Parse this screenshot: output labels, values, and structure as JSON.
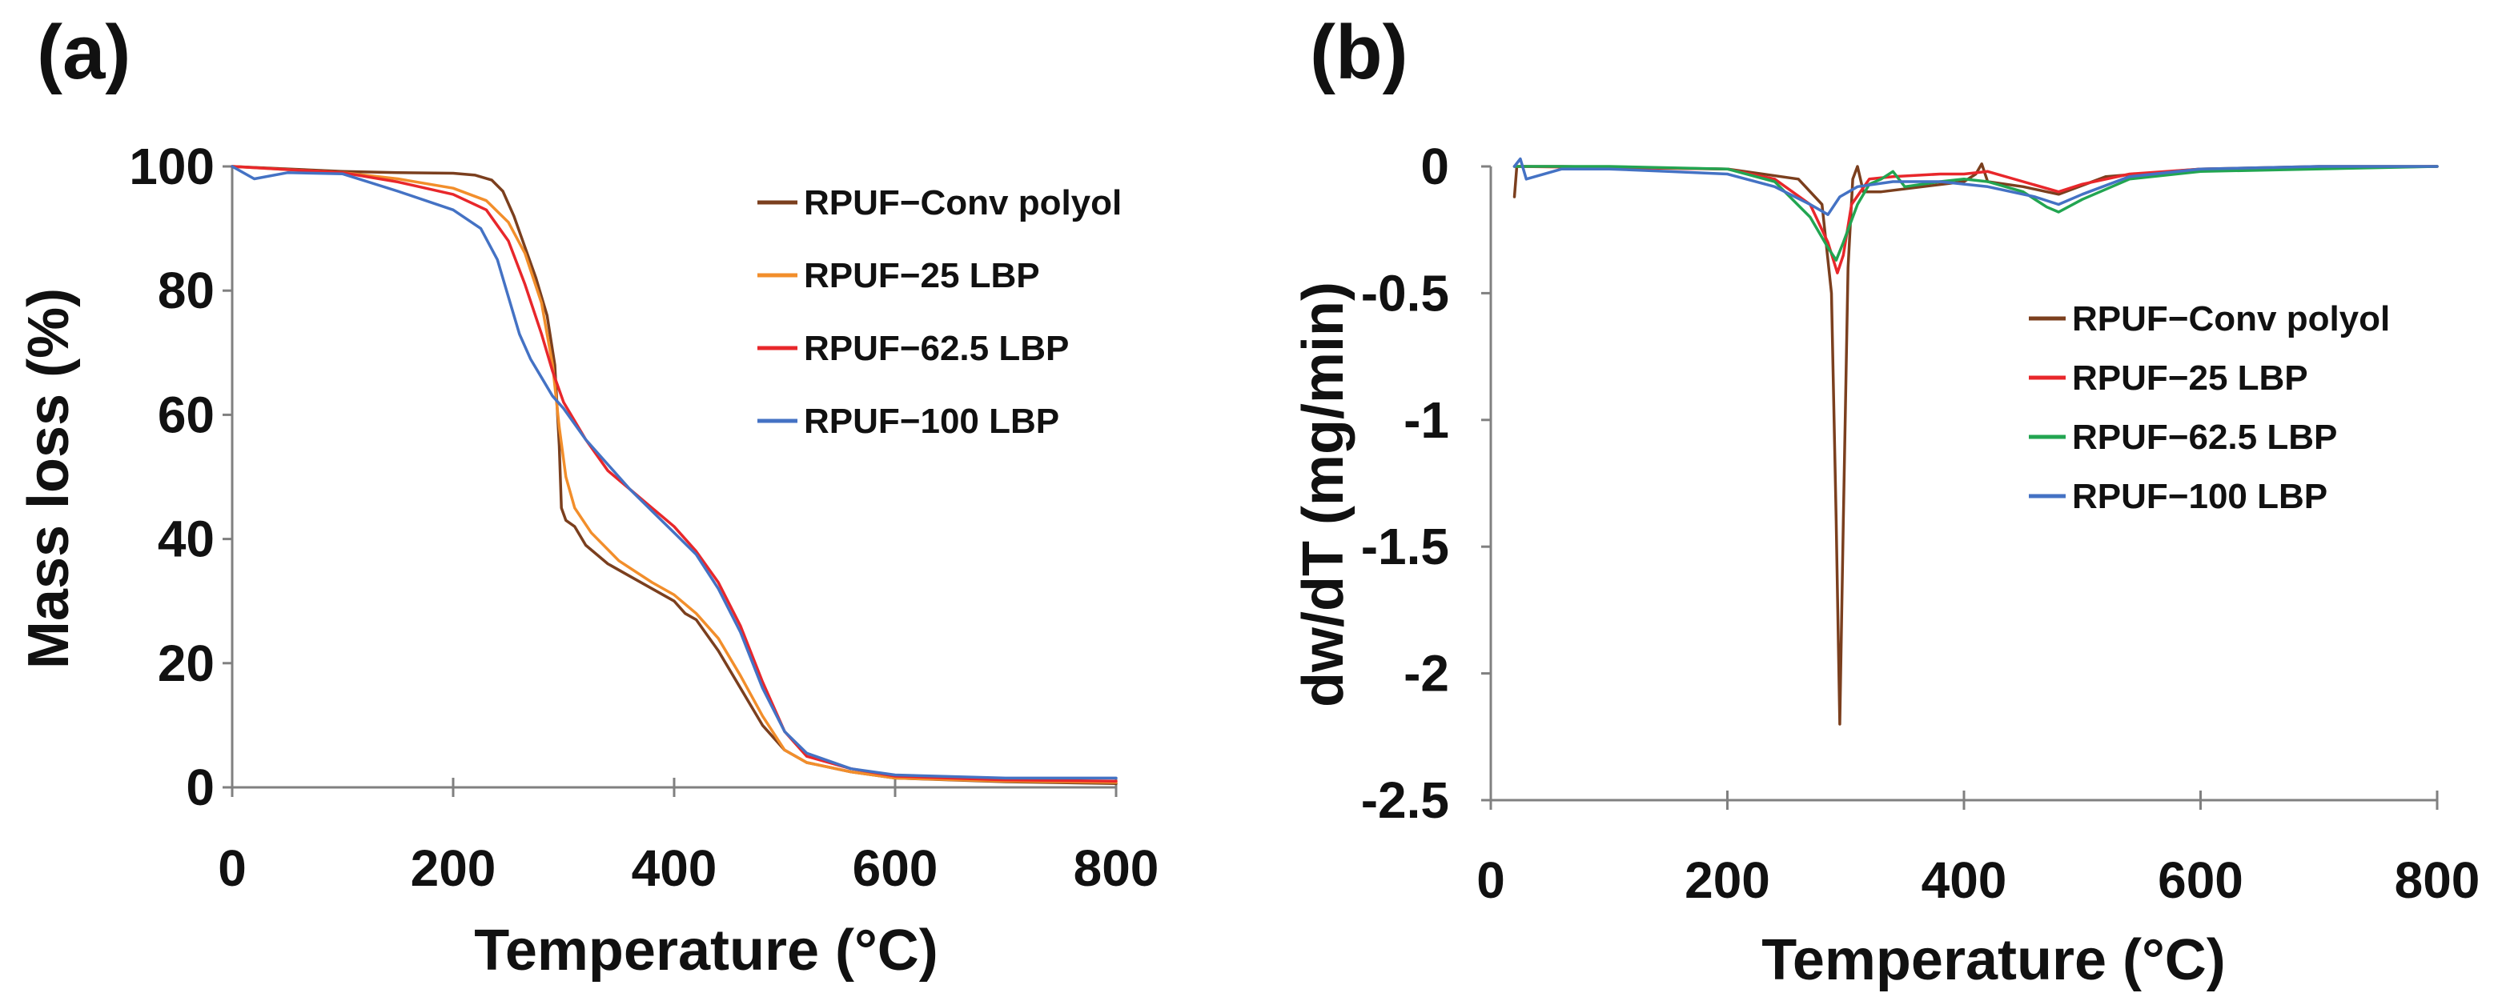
{
  "chart_data": [
    {
      "panel_label": "(a)",
      "type": "line",
      "xlabel": "Temperature (°C)",
      "ylabel": "Mass loss  (%)",
      "xlim": [
        0,
        800
      ],
      "ylim": [
        0,
        100
      ],
      "xticks": [
        0,
        200,
        400,
        600,
        800
      ],
      "yticks": [
        0,
        20,
        40,
        60,
        80,
        100
      ],
      "legend_position": "top-right",
      "series": [
        {
          "name": "RPUF−Conv polyol",
          "color": "#7B3F1E",
          "points": [
            [
              0,
              100
            ],
            [
              50,
              99.6
            ],
            [
              100,
              99.2
            ],
            [
              150,
              99
            ],
            [
              200,
              98.9
            ],
            [
              220,
              98.6
            ],
            [
              235,
              97.8
            ],
            [
              245,
              96
            ],
            [
              255,
              92
            ],
            [
              265,
              87
            ],
            [
              275,
              82
            ],
            [
              285,
              76
            ],
            [
              292,
              68
            ],
            [
              296,
              55
            ],
            [
              298,
              45
            ],
            [
              302,
              43
            ],
            [
              310,
              42
            ],
            [
              320,
              39
            ],
            [
              340,
              36
            ],
            [
              360,
              34
            ],
            [
              380,
              32
            ],
            [
              400,
              30
            ],
            [
              410,
              28
            ],
            [
              420,
              27
            ],
            [
              440,
              22
            ],
            [
              460,
              16
            ],
            [
              480,
              10
            ],
            [
              500,
              6
            ],
            [
              520,
              4
            ],
            [
              560,
              2.5
            ],
            [
              600,
              1.5
            ],
            [
              700,
              0.9
            ],
            [
              800,
              0.6
            ]
          ]
        },
        {
          "name": "RPUF−25 LBP",
          "color": "#F28E2B",
          "points": [
            [
              0,
              100
            ],
            [
              100,
              99
            ],
            [
              150,
              98
            ],
            [
              200,
              96.5
            ],
            [
              230,
              94.5
            ],
            [
              250,
              91
            ],
            [
              265,
              86
            ],
            [
              280,
              78
            ],
            [
              290,
              68
            ],
            [
              296,
              58
            ],
            [
              302,
              50
            ],
            [
              310,
              45
            ],
            [
              325,
              41
            ],
            [
              350,
              36.5
            ],
            [
              380,
              33
            ],
            [
              400,
              31
            ],
            [
              420,
              28
            ],
            [
              440,
              24
            ],
            [
              460,
              18
            ],
            [
              480,
              11.5
            ],
            [
              500,
              6
            ],
            [
              520,
              4
            ],
            [
              560,
              2.5
            ],
            [
              600,
              1.5
            ],
            [
              700,
              1
            ],
            [
              800,
              0.8
            ]
          ]
        },
        {
          "name": "RPUF−62.5 LBP",
          "color": "#E8272B",
          "points": [
            [
              0,
              100
            ],
            [
              100,
              99
            ],
            [
              150,
              97.5
            ],
            [
              200,
              95.5
            ],
            [
              230,
              93
            ],
            [
              250,
              88
            ],
            [
              265,
              81
            ],
            [
              280,
              73
            ],
            [
              290,
              67
            ],
            [
              300,
              62
            ],
            [
              320,
              56
            ],
            [
              340,
              51
            ],
            [
              360,
              48
            ],
            [
              380,
              45
            ],
            [
              400,
              42
            ],
            [
              420,
              38
            ],
            [
              440,
              33
            ],
            [
              460,
              26
            ],
            [
              480,
              17
            ],
            [
              500,
              9
            ],
            [
              520,
              5
            ],
            [
              560,
              3
            ],
            [
              600,
              1.8
            ],
            [
              700,
              1.2
            ],
            [
              800,
              1
            ]
          ]
        },
        {
          "name": "RPUF−100 LBP",
          "color": "#4472C4",
          "points": [
            [
              0,
              100
            ],
            [
              20,
              98
            ],
            [
              50,
              99
            ],
            [
              100,
              98.8
            ],
            [
              150,
              96
            ],
            [
              200,
              93
            ],
            [
              225,
              90
            ],
            [
              240,
              85
            ],
            [
              250,
              79
            ],
            [
              260,
              73
            ],
            [
              270,
              69
            ],
            [
              280,
              66
            ],
            [
              290,
              63
            ],
            [
              300,
              61
            ],
            [
              320,
              56
            ],
            [
              340,
              52
            ],
            [
              360,
              48
            ],
            [
              380,
              44.5
            ],
            [
              400,
              41
            ],
            [
              420,
              37.5
            ],
            [
              440,
              32
            ],
            [
              460,
              25
            ],
            [
              480,
              16
            ],
            [
              500,
              9
            ],
            [
              520,
              5.5
            ],
            [
              560,
              3
            ],
            [
              600,
              2
            ],
            [
              700,
              1.5
            ],
            [
              800,
              1.5
            ]
          ]
        }
      ]
    },
    {
      "panel_label": "(b)",
      "type": "line",
      "xlabel": "Temperature  (°C)",
      "ylabel": "dw/dT  (mg/min)",
      "xlim": [
        0,
        800
      ],
      "ylim": [
        -2.5,
        0
      ],
      "xticks": [
        0,
        200,
        400,
        600,
        800
      ],
      "yticks": [
        0,
        -0.5,
        -1,
        -1.5,
        -2,
        -2.5
      ],
      "legend_position": "middle-right",
      "series": [
        {
          "name": "RPUF−Conv polyol",
          "color": "#7B3F1E",
          "points": [
            [
              20,
              -0.12
            ],
            [
              22,
              0
            ],
            [
              60,
              0
            ],
            [
              200,
              -0.01
            ],
            [
              260,
              -0.05
            ],
            [
              280,
              -0.15
            ],
            [
              288,
              -0.5
            ],
            [
              292,
              -1.4
            ],
            [
              295,
              -2.2
            ],
            [
              298,
              -1.4
            ],
            [
              302,
              -0.4
            ],
            [
              306,
              -0.05
            ],
            [
              310,
              0
            ],
            [
              315,
              -0.1
            ],
            [
              330,
              -0.1
            ],
            [
              400,
              -0.06
            ],
            [
              410,
              -0.03
            ],
            [
              415,
              0.01
            ],
            [
              420,
              -0.06
            ],
            [
              450,
              -0.08
            ],
            [
              470,
              -0.1
            ],
            [
              480,
              -0.11
            ],
            [
              520,
              -0.04
            ],
            [
              600,
              -0.01
            ],
            [
              700,
              0
            ],
            [
              800,
              0
            ]
          ]
        },
        {
          "name": "RPUF−25 LBP",
          "color": "#E8272B",
          "points": [
            [
              20,
              0
            ],
            [
              200,
              -0.01
            ],
            [
              240,
              -0.05
            ],
            [
              270,
              -0.15
            ],
            [
              285,
              -0.3
            ],
            [
              293,
              -0.42
            ],
            [
              298,
              -0.35
            ],
            [
              305,
              -0.15
            ],
            [
              320,
              -0.05
            ],
            [
              340,
              -0.04
            ],
            [
              380,
              -0.03
            ],
            [
              400,
              -0.03
            ],
            [
              420,
              -0.02
            ],
            [
              450,
              -0.06
            ],
            [
              480,
              -0.1
            ],
            [
              500,
              -0.07
            ],
            [
              540,
              -0.03
            ],
            [
              600,
              -0.01
            ],
            [
              800,
              0
            ]
          ]
        },
        {
          "name": "RPUF−62.5 LBP",
          "color": "#22A551",
          "points": [
            [
              20,
              0
            ],
            [
              100,
              0
            ],
            [
              200,
              -0.01
            ],
            [
              240,
              -0.06
            ],
            [
              270,
              -0.2
            ],
            [
              285,
              -0.32
            ],
            [
              292,
              -0.37
            ],
            [
              298,
              -0.3
            ],
            [
              310,
              -0.15
            ],
            [
              320,
              -0.07
            ],
            [
              330,
              -0.05
            ],
            [
              340,
              -0.02
            ],
            [
              350,
              -0.08
            ],
            [
              380,
              -0.06
            ],
            [
              400,
              -0.05
            ],
            [
              420,
              -0.06
            ],
            [
              450,
              -0.1
            ],
            [
              470,
              -0.16
            ],
            [
              480,
              -0.18
            ],
            [
              500,
              -0.13
            ],
            [
              540,
              -0.05
            ],
            [
              600,
              -0.02
            ],
            [
              800,
              0
            ]
          ]
        },
        {
          "name": "RPUF−100 LBP",
          "color": "#4472C4",
          "points": [
            [
              20,
              0
            ],
            [
              25,
              0.03
            ],
            [
              30,
              -0.05
            ],
            [
              60,
              -0.01
            ],
            [
              100,
              -0.01
            ],
            [
              150,
              -0.02
            ],
            [
              200,
              -0.03
            ],
            [
              240,
              -0.08
            ],
            [
              270,
              -0.15
            ],
            [
              285,
              -0.19
            ],
            [
              295,
              -0.12
            ],
            [
              310,
              -0.08
            ],
            [
              340,
              -0.06
            ],
            [
              380,
              -0.06
            ],
            [
              420,
              -0.08
            ],
            [
              460,
              -0.12
            ],
            [
              480,
              -0.15
            ],
            [
              500,
              -0.11
            ],
            [
              540,
              -0.04
            ],
            [
              600,
              -0.01
            ],
            [
              700,
              0
            ],
            [
              800,
              0
            ]
          ]
        }
      ]
    }
  ]
}
